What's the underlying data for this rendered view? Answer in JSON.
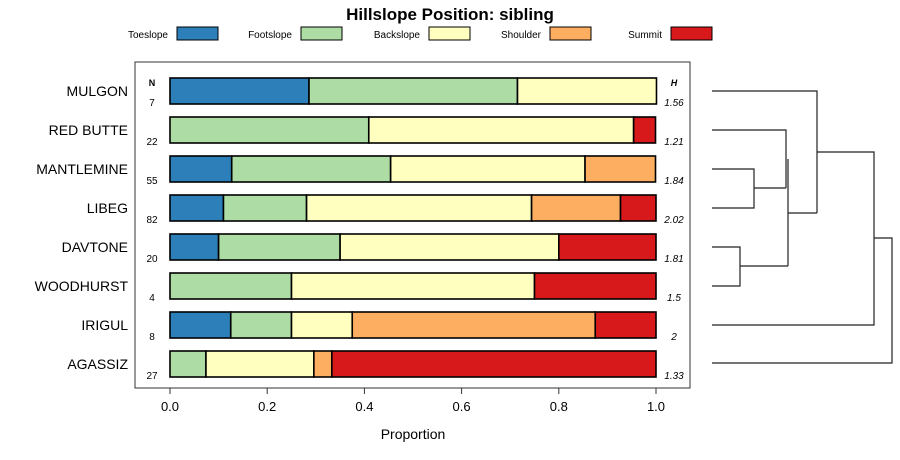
{
  "chart_data": {
    "type": "bar",
    "stacked": true,
    "orientation": "horizontal",
    "title": "Hillslope Position: sibling",
    "xlabel": "Proportion",
    "xlim": [
      0,
      1
    ],
    "xticks": [
      "0.0",
      "0.2",
      "0.4",
      "0.6",
      "0.8",
      "1.0"
    ],
    "xtick_values": [
      0,
      0.2,
      0.4,
      0.6,
      0.8,
      1.0
    ],
    "legend_placement": "top",
    "n_header": "N",
    "h_header": "H",
    "series": [
      {
        "name": "Toeslope",
        "color": "#2C7FB8"
      },
      {
        "name": "Footslope",
        "color": "#ADDDA4"
      },
      {
        "name": "Backslope",
        "color": "#FFFFBF"
      },
      {
        "name": "Shoulder",
        "color": "#FDAE61"
      },
      {
        "name": "Summit",
        "color": "#D7191C"
      }
    ],
    "categories": [
      "MULGON",
      "RED BUTTE",
      "MANTLEMINE",
      "LIBEG",
      "DAVTONE",
      "WOODHURST",
      "IRIGUL",
      "AGASSIZ"
    ],
    "n": [
      "7",
      "22",
      "55",
      "82",
      "20",
      "4",
      "8",
      "27"
    ],
    "h": [
      "1.56",
      "1.21",
      "1.84",
      "2.02",
      "1.81",
      "1.5",
      "2",
      "1.33"
    ],
    "values": [
      [
        0.286,
        0.429,
        0.286,
        0,
        0
      ],
      [
        0,
        0.409,
        0.545,
        0,
        0.045
      ],
      [
        0.127,
        0.327,
        0.4,
        0.145,
        0
      ],
      [
        0.11,
        0.171,
        0.463,
        0.183,
        0.073
      ],
      [
        0.1,
        0.25,
        0.45,
        0,
        0.2
      ],
      [
        0,
        0.25,
        0.5,
        0,
        0.25
      ],
      [
        0.125,
        0.125,
        0.125,
        0.5,
        0.125
      ],
      [
        0,
        0.074,
        0.222,
        0.037,
        0.667
      ]
    ],
    "dendrogram_merges": [
      [
        "MANTLEMINE",
        "LIBEG"
      ],
      [
        "DAVTONE",
        "WOODHURST"
      ],
      [
        "RED BUTTE",
        "MANTLEMINE+LIBEG"
      ],
      [
        "RED BUTTE+MANTLEMINE+LIBEG",
        "DAVTONE+WOODHURST"
      ],
      [
        "MULGON",
        "cluster"
      ],
      [
        "cluster",
        "IRIGUL"
      ],
      [
        "cluster",
        "AGASSIZ"
      ]
    ]
  }
}
